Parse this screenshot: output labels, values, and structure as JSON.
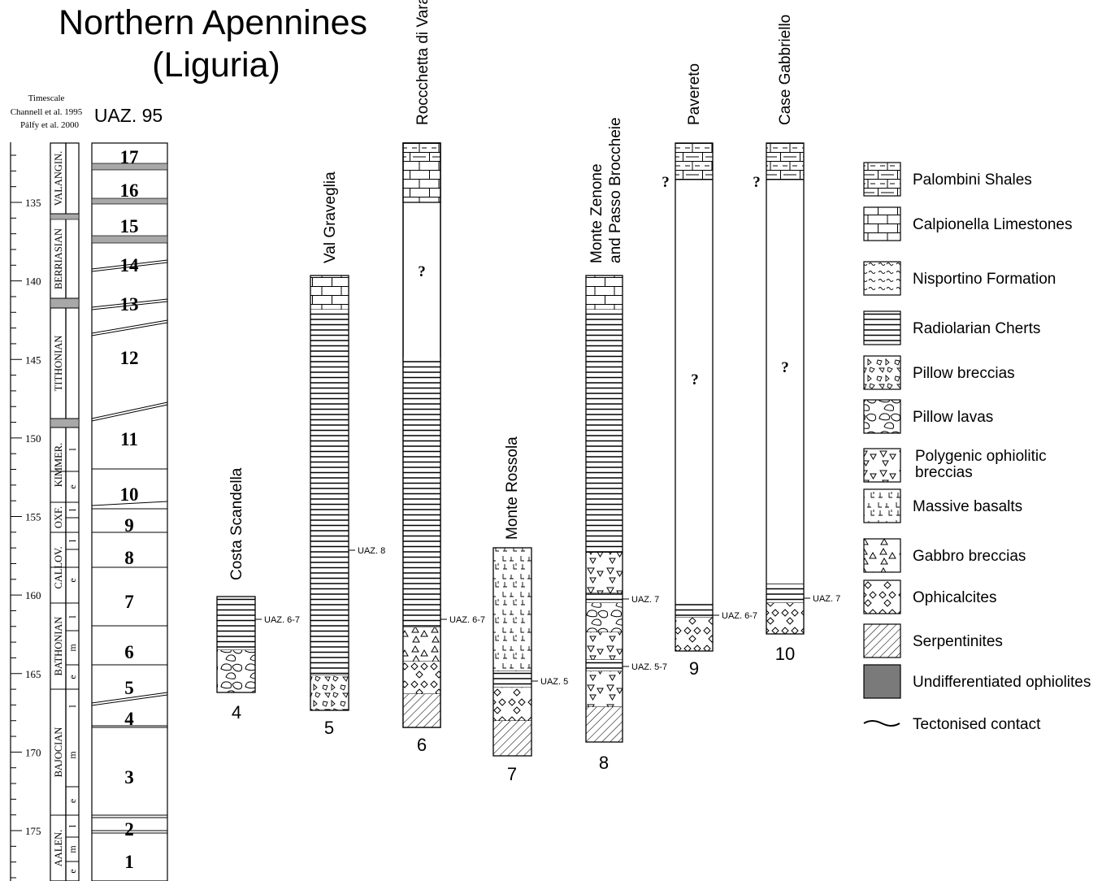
{
  "title_line1": "Northern Apennines",
  "title_line2": "(Liguria)",
  "timescale": {
    "label_lines": [
      "Timescale",
      "Channell et al. 1995",
      "Pálfy et al. 2000"
    ],
    "tick_labels": [
      "135",
      "140",
      "145",
      "150",
      "155",
      "160",
      "165",
      "170",
      "175"
    ],
    "stages": [
      "VALANGIN.",
      "BERRIASIAN",
      "TITHONIAN",
      "KIMMER.",
      "OXF.",
      "CALLOV.",
      "BATHONIAN",
      "BAJOCIAN",
      "AALEN."
    ],
    "substages": [
      "l",
      "e",
      "l",
      "m",
      "e",
      "l",
      "m",
      "e",
      "l",
      "m",
      "e",
      "l",
      "m",
      "e",
      "l",
      "m",
      "e"
    ]
  },
  "zones": {
    "header": "UAZ. 95",
    "labels": [
      "17",
      "16",
      "15",
      "14",
      "13",
      "12",
      "11",
      "10",
      "9",
      "8",
      "7",
      "6",
      "5",
      "4",
      "3",
      "2",
      "1"
    ]
  },
  "sections": [
    {
      "number": "4",
      "name": "Costa Scandella",
      "markers": [
        "UAZ. 6-7"
      ]
    },
    {
      "number": "5",
      "name": "Val Graveglia",
      "markers": [
        "UAZ. 8"
      ]
    },
    {
      "number": "6",
      "name": "Roccchetta di Vara",
      "markers": [
        "UAZ. 6-7"
      ],
      "query": "?"
    },
    {
      "number": "7",
      "name": "Monte Rossola",
      "markers": [
        "UAZ. 5"
      ]
    },
    {
      "number": "8",
      "name_lines": [
        "Monte Zenone",
        "and Passo Broccheie"
      ],
      "markers": [
        "UAZ. 7",
        "UAZ. 5-7"
      ]
    },
    {
      "number": "9",
      "name": "Pavereto",
      "markers": [
        "UAZ. 6-7"
      ],
      "query": "?"
    },
    {
      "number": "10",
      "name": "Case Gabbriello",
      "markers": [
        "UAZ. 7"
      ],
      "query": "?"
    }
  ],
  "legend": [
    {
      "key": "palombini",
      "label": "Palombini Shales"
    },
    {
      "key": "calpionella",
      "label": "Calpionella Limestones"
    },
    {
      "key": "nisportino",
      "label": "Nisportino Formation"
    },
    {
      "key": "radiolarian",
      "label": "Radiolarian Cherts"
    },
    {
      "key": "pillowbreccia",
      "label": "Pillow breccias"
    },
    {
      "key": "pillowlava",
      "label": "Pillow lavas"
    },
    {
      "key": "polygenic",
      "label": "Polygenic ophiolitic breccias"
    },
    {
      "key": "basalt",
      "label": "Massive basalts"
    },
    {
      "key": "gabbro",
      "label": "Gabbro breccias"
    },
    {
      "key": "ophicalcite",
      "label": "Ophicalcites"
    },
    {
      "key": "serpentinite",
      "label": "Serpentinites"
    },
    {
      "key": "undiff",
      "label": "Undifferentiated ophiolites"
    },
    {
      "key": "tecton",
      "label": "Tectonised contact"
    }
  ],
  "colors": {
    "ink": "#000000",
    "undifferentiated": "#7a7a7a",
    "band": "#a8a8a8"
  }
}
